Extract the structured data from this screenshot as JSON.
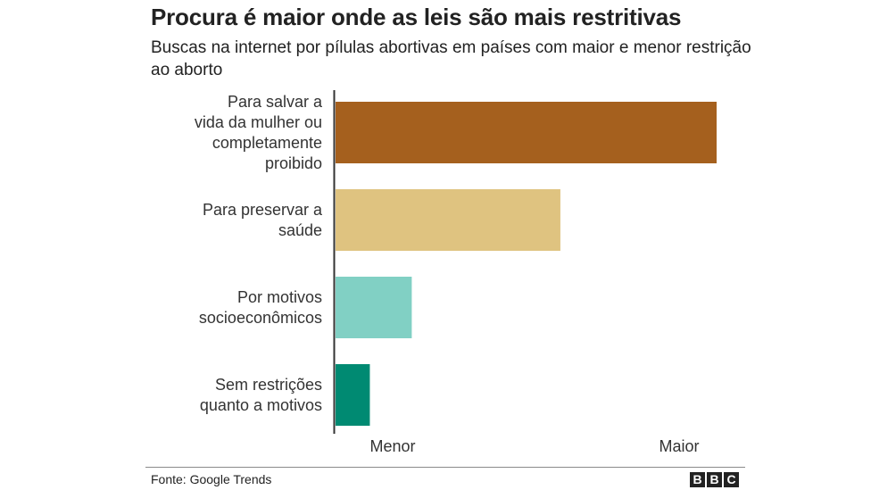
{
  "title": "Procura é maior onde as leis são mais restritivas",
  "subtitle": "Buscas na internet por pílulas abortivas em países com maior e menor restrição ao aborto",
  "source": "Fonte: Google Trends",
  "logo_letters": [
    "B",
    "B",
    "C"
  ],
  "chart_data": {
    "type": "bar",
    "orientation": "horizontal",
    "categories": [
      [
        "Para salvar a",
        "vida da mulher ou",
        "completamente",
        "proibido"
      ],
      [
        "Para preservar a",
        "saúde"
      ],
      [
        "Por motivos",
        "socioeconômicos"
      ],
      [
        "Sem restrições",
        "quanto a motivos"
      ]
    ],
    "values": [
      100,
      59,
      20,
      9
    ],
    "colors": [
      "#a5601e",
      "#dfc380",
      "#81d0c4",
      "#008a72"
    ],
    "xlim": [
      0,
      100
    ],
    "x_axis_labels": [
      "Menor",
      "Maior"
    ],
    "grid": false,
    "legend": "none"
  }
}
